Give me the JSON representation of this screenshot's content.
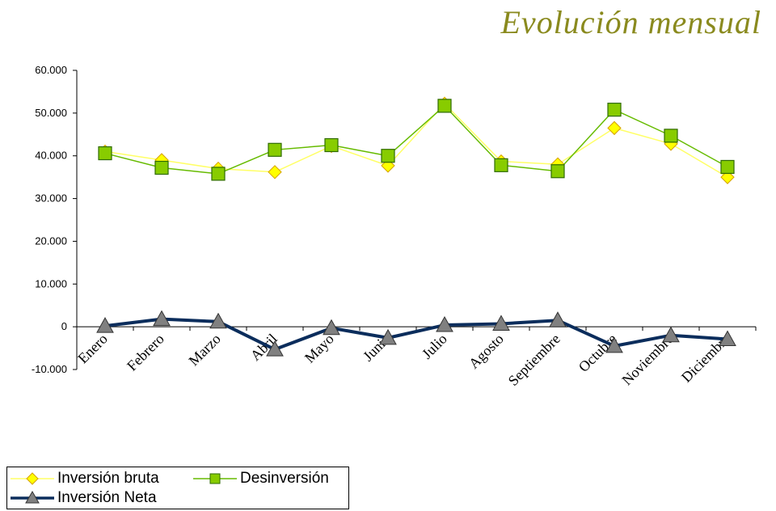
{
  "title": "Evolución mensual",
  "chart_data": {
    "type": "line",
    "categories": [
      "Enero",
      "Febrero",
      "Marzo",
      "Abril",
      "Mayo",
      "Junio",
      "Julio",
      "Agosto",
      "Septiembre",
      "Octubre",
      "Noviembre",
      "Diciembre"
    ],
    "ylim": [
      -10000,
      60000
    ],
    "yticks": [
      {
        "value": 60000,
        "label": "60.000"
      },
      {
        "value": 50000,
        "label": "50.000"
      },
      {
        "value": 40000,
        "label": "40.000"
      },
      {
        "value": 30000,
        "label": "30.000"
      },
      {
        "value": 20000,
        "label": "20.000"
      },
      {
        "value": 10000,
        "label": "10.000"
      },
      {
        "value": 0,
        "label": "0"
      },
      {
        "value": -10000,
        "label": "-10.000"
      }
    ],
    "legend_position": "bottom-left",
    "grid": false,
    "series": [
      {
        "name": "Inversión bruta",
        "color": "#ffff66",
        "marker": "diamond",
        "marker_color": "#ffff00",
        "values": [
          41000,
          39000,
          37000,
          36200,
          42300,
          37700,
          52200,
          38700,
          38000,
          46500,
          42800,
          35000
        ]
      },
      {
        "name": "Desinversión",
        "color": "#66bb00",
        "marker": "square",
        "marker_color": "#88cc00",
        "values": [
          40600,
          37200,
          35800,
          41400,
          42500,
          40000,
          51700,
          37800,
          36400,
          50800,
          44700,
          37400
        ]
      },
      {
        "name": "Inversión Neta",
        "color": "#0b2d5c",
        "marker": "triangle",
        "marker_color": "#808080",
        "values": [
          200,
          1800,
          1200,
          -5300,
          -300,
          -2600,
          400,
          700,
          1500,
          -4500,
          -2000,
          -2900
        ]
      }
    ]
  }
}
